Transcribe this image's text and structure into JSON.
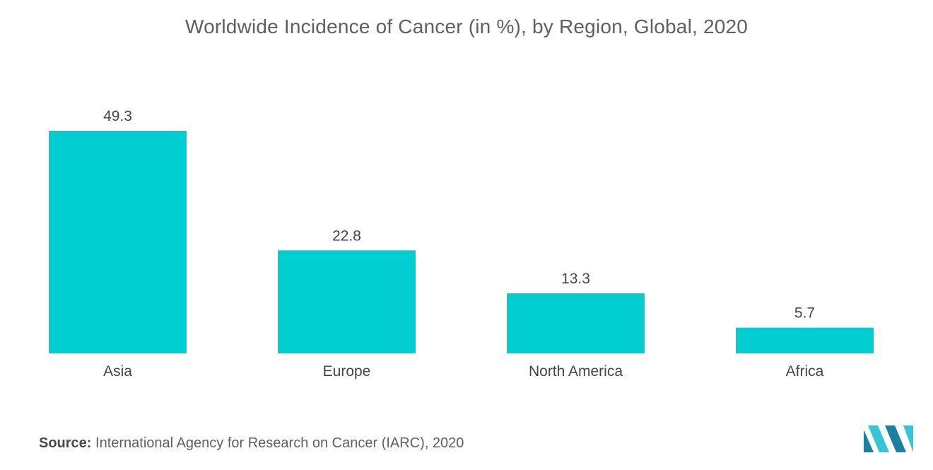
{
  "chart_data": {
    "type": "bar",
    "title": "Worldwide Incidence of Cancer (in %), by Region, Global, 2020",
    "categories": [
      "Asia",
      "Europe",
      "North America",
      "Africa"
    ],
    "values": [
      49.3,
      22.8,
      13.3,
      5.7
    ],
    "value_labels": [
      "49.3",
      "22.8",
      "13.3",
      "5.7"
    ],
    "xlabel": "",
    "ylabel": "",
    "ylim": [
      0,
      49.3
    ],
    "grid": false,
    "legend": "none",
    "bar_color": "#00ced1"
  },
  "source": {
    "label": "Source:",
    "text": "International Agency for Research on Cancer (IARC), 2020"
  },
  "logo": {
    "icon": "mordor-intelligence-logo-icon",
    "colors": [
      "#1a7fa0",
      "#34c6d3"
    ]
  }
}
